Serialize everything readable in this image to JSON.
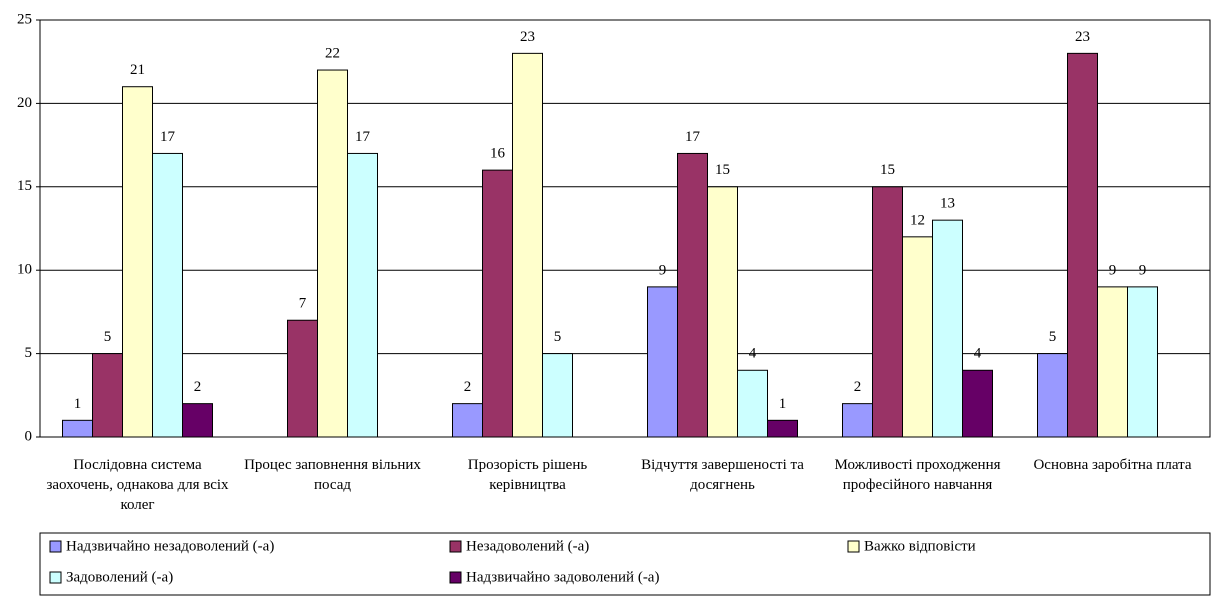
{
  "chart_data": {
    "type": "bar",
    "categories": [
      "Послідовна система заохочень, однакова для всіх колег",
      "Процес заповнення вільних посад",
      "Прозорість рішень керівництва",
      "Відчуття завершеності та досягнень",
      "Можливості проходження професійного навчання",
      "Основна заробітна плата"
    ],
    "series": [
      {
        "name": "Надзвичайно незадоволений (-а)",
        "color": "#9999ff",
        "values": [
          1,
          null,
          2,
          9,
          2,
          5
        ]
      },
      {
        "name": "Незадоволений (-а)",
        "color": "#993366",
        "values": [
          5,
          7,
          16,
          17,
          15,
          23
        ]
      },
      {
        "name": "Важко відповісти",
        "color": "#ffffcc",
        "values": [
          21,
          22,
          23,
          15,
          12,
          9
        ]
      },
      {
        "name": "Задоволений (-а)",
        "color": "#ccffff",
        "values": [
          17,
          17,
          5,
          4,
          13,
          9
        ]
      },
      {
        "name": "Надзвичайно задоволений (-а)",
        "color": "#660066",
        "values": [
          2,
          null,
          null,
          1,
          4,
          null
        ]
      }
    ],
    "ylim": [
      0,
      25
    ],
    "yticks": [
      0,
      5,
      10,
      15,
      20,
      25
    ],
    "grid": true,
    "legend": "bottom"
  }
}
